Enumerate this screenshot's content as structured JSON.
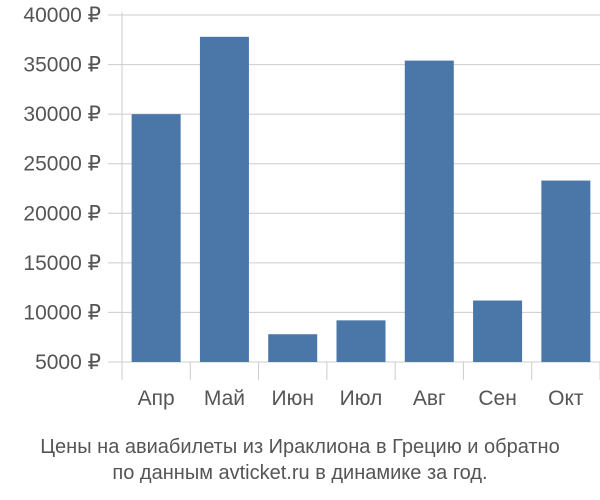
{
  "chart_data": {
    "type": "bar",
    "categories": [
      "Апр",
      "Май",
      "Июн",
      "Июл",
      "Авг",
      "Сен",
      "Окт"
    ],
    "values": [
      30000,
      37800,
      7800,
      9200,
      35400,
      11200,
      23300
    ],
    "y_tick_values": [
      5000,
      10000,
      15000,
      20000,
      25000,
      30000,
      35000,
      40000
    ],
    "y_tick_labels": [
      "5000 ₽",
      "10000 ₽",
      "15000 ₽",
      "20000 ₽",
      "25000 ₽",
      "30000 ₽",
      "35000 ₽",
      "40000 ₽"
    ],
    "ylim": [
      4000,
      41000
    ],
    "grid": true,
    "title": "",
    "xlabel": "",
    "ylabel": "",
    "bar_color": "#4a76a8",
    "grid_color": "#cccccc"
  },
  "caption": {
    "line1": "Цены на авиабилеты из Ираклиона в Грецию и обратно",
    "line2": "по данным avticket.ru в динамике за год."
  }
}
